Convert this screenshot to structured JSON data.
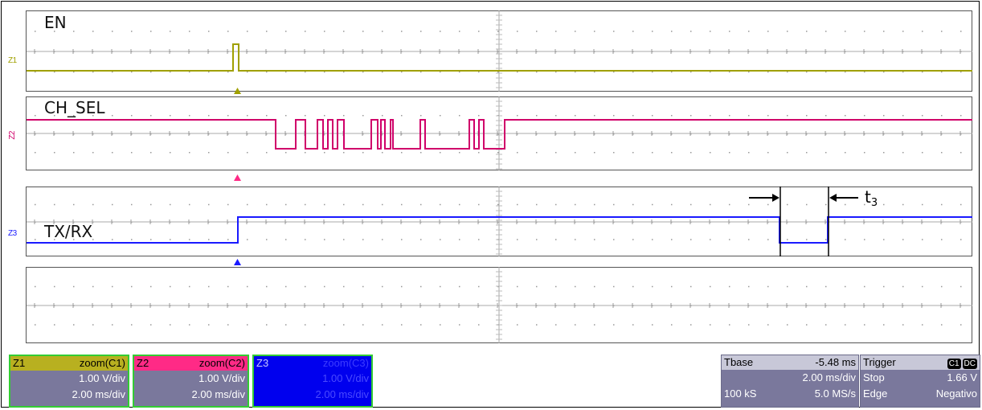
{
  "panels": [
    {
      "id": "z1",
      "zlabel": "Z1",
      "signal": "EN",
      "color": "#a0a000"
    },
    {
      "id": "z2",
      "zlabel": "Z2",
      "signal": "CH_SEL",
      "color": "#d0006a"
    },
    {
      "id": "z3",
      "zlabel": "Z3",
      "signal": "TX/RX",
      "color": "#1a1aff"
    },
    {
      "id": "z4",
      "zlabel": "",
      "signal": "",
      "color": "#000000"
    }
  ],
  "annotation": {
    "t_label": "t",
    "t_sub": "3"
  },
  "channels": [
    {
      "name": "Z1",
      "source": "zoom(C1)",
      "vdiv": "1.00 V/div",
      "tdiv": "2.00 ms/div"
    },
    {
      "name": "Z2",
      "source": "zoom(C2)",
      "vdiv": "1.00 V/div",
      "tdiv": "2.00 ms/div"
    },
    {
      "name": "Z3",
      "source": "zoom(C3)",
      "vdiv": "1.00 V/div",
      "tdiv": "2.00 ms/div"
    }
  ],
  "timebase": {
    "label": "Tbase",
    "offset": "-5.48 ms",
    "tdiv": "2.00 ms/div",
    "samples": "100 kS",
    "rate": "5.0 MS/s"
  },
  "trigger": {
    "label": "Trigger",
    "source": "C1",
    "coupling": "DC",
    "mode": "Stop",
    "level": "1.66 V",
    "type": "Edge",
    "slope": "Negativo"
  },
  "colors": {
    "en": "#a0a000",
    "chsel": "#d0006a",
    "txrx": "#1a1aff",
    "grid": "#888888"
  }
}
